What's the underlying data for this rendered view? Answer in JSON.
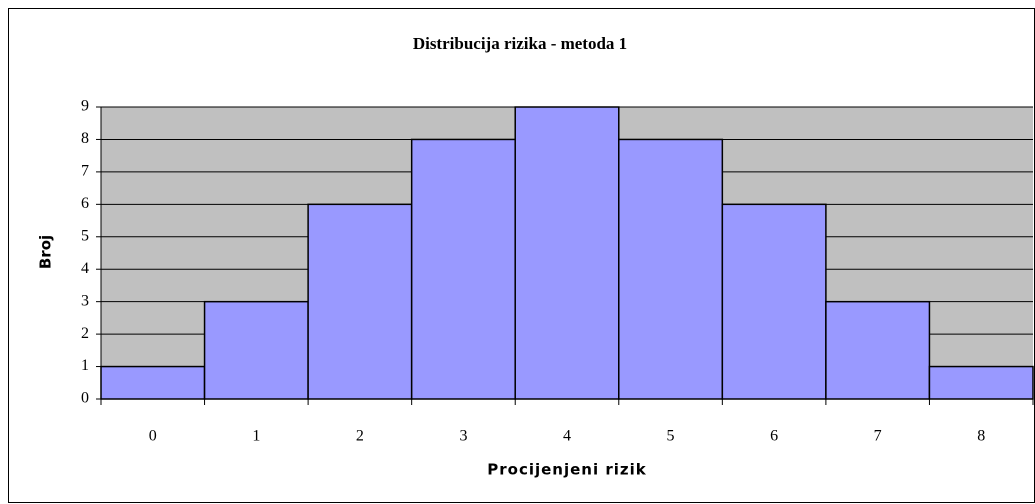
{
  "chart_data": {
    "type": "bar",
    "title": "Distribucija rizika - metoda 1",
    "x_label": "Procijenjeni rizik",
    "y_label": "Broj",
    "categories": [
      "0",
      "1",
      "2",
      "3",
      "4",
      "5",
      "6",
      "7",
      "8"
    ],
    "values": [
      1,
      3,
      6,
      8,
      9,
      8,
      6,
      3,
      1
    ],
    "color": "#9999ff",
    "background": "#c0c0c0",
    "ylim": [
      0,
      9
    ],
    "yticks": [
      0,
      1,
      2,
      3,
      4,
      5,
      6,
      7,
      8,
      9
    ],
    "grid": true
  }
}
